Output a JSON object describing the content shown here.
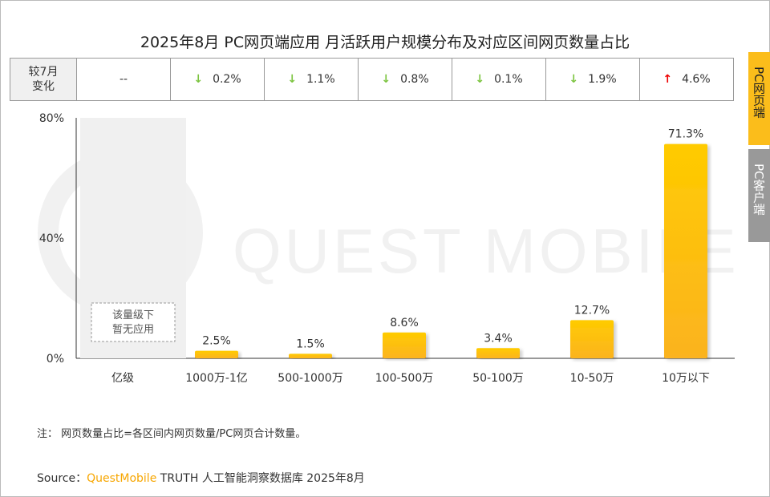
{
  "title": "2025年8月 PC网页端应用 月活跃用户规模分布及对应区间网页数量占比",
  "change_table": {
    "header": [
      "较7月",
      "变化"
    ],
    "cells": [
      {
        "dir": "none",
        "value": "--"
      },
      {
        "dir": "down",
        "value": "0.2%"
      },
      {
        "dir": "down",
        "value": "1.1%"
      },
      {
        "dir": "down",
        "value": "0.8%"
      },
      {
        "dir": "down",
        "value": "0.1%"
      },
      {
        "dir": "down",
        "value": "1.9%"
      },
      {
        "dir": "up",
        "value": "4.6%"
      }
    ]
  },
  "tabs": [
    {
      "label": "PC网页端",
      "active": true
    },
    {
      "label": "PC客户端",
      "active": false
    }
  ],
  "chart_data": {
    "type": "bar",
    "categories": [
      "亿级",
      "1000万-1亿",
      "500-1000万",
      "100-500万",
      "50-100万",
      "10-50万",
      "10万以下"
    ],
    "values": [
      null,
      2.5,
      1.5,
      8.6,
      3.4,
      12.7,
      71.3
    ],
    "data_labels": [
      "",
      "2.5%",
      "1.5%",
      "8.6%",
      "3.4%",
      "12.7%",
      "71.3%"
    ],
    "yticks": [
      "0%",
      "40%",
      "80%"
    ],
    "ylim": [
      0,
      80
    ],
    "na_label": [
      "该量级下",
      "暂无应用"
    ],
    "bar_color": "#ffc400"
  },
  "watermark": "QUEST MOBILE",
  "note": "注：   网页数量占比=各区间内网页数量/PC网页合计数量。",
  "source": {
    "prefix": "Source：",
    "brand": "QuestMobile",
    "rest": " TRUTH 人工智能洞察数据库 2025年8月"
  }
}
